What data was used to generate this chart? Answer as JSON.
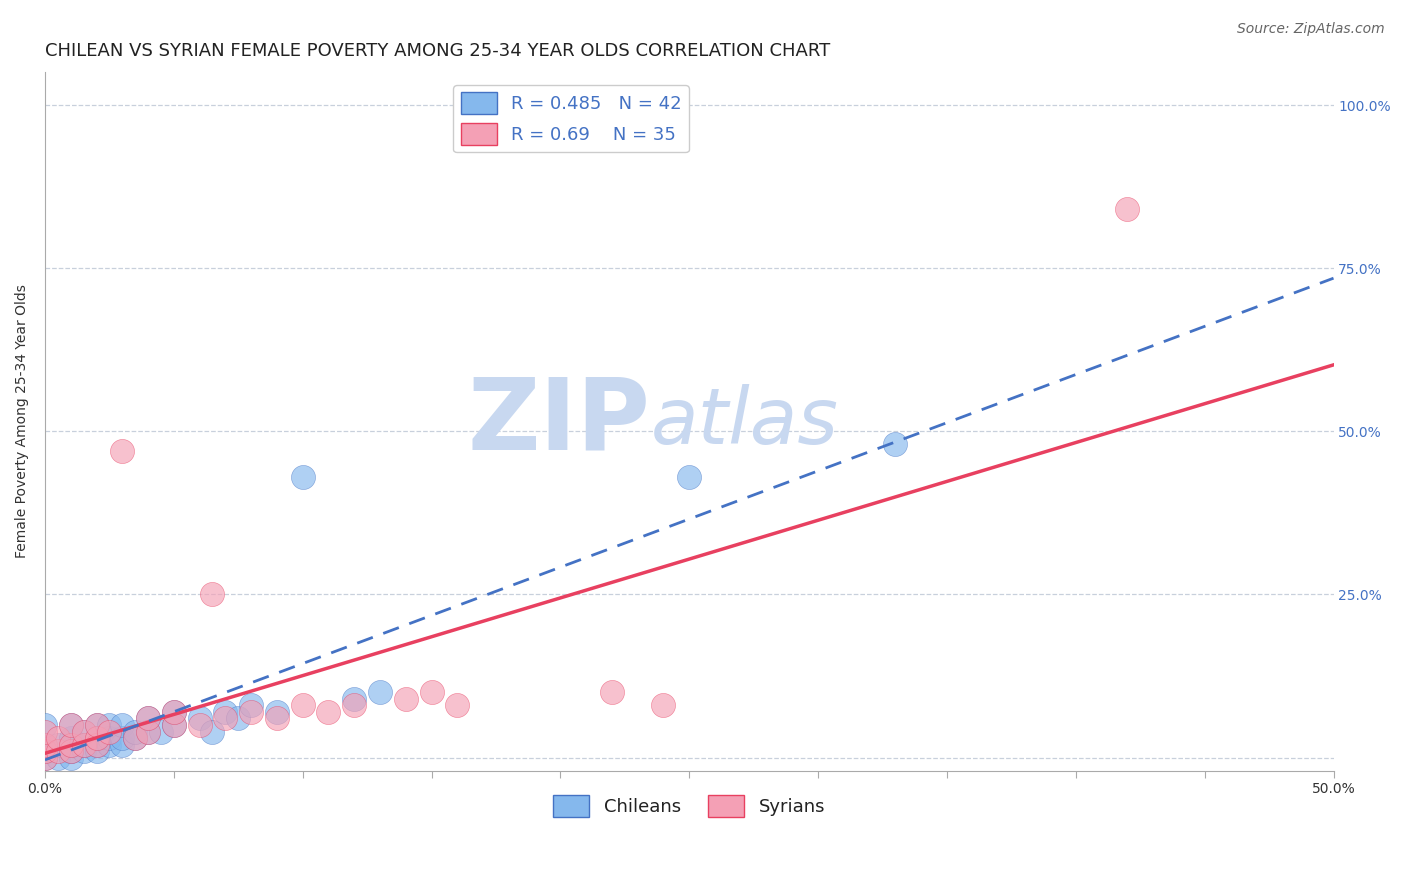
{
  "title": "CHILEAN VS SYRIAN FEMALE POVERTY AMONG 25-34 YEAR OLDS CORRELATION CHART",
  "source": "Source: ZipAtlas.com",
  "ylabel": "Female Poverty Among 25-34 Year Olds",
  "xlim": [
    0.0,
    0.5
  ],
  "ylim": [
    -0.02,
    1.05
  ],
  "chilean_color": "#85B8ED",
  "syrian_color": "#F4A0B5",
  "chilean_line_color": "#4472C4",
  "syrian_line_color": "#E84060",
  "tick_color": "#4472C4",
  "r_chilean": 0.485,
  "n_chilean": 42,
  "r_syrian": 0.69,
  "n_syrian": 35,
  "watermark_zip": "ZIP",
  "watermark_atlas": "atlas",
  "watermark_color": "#C8D8F0",
  "chilean_x": [
    0.0,
    0.0,
    0.0,
    0.0,
    0.005,
    0.005,
    0.01,
    0.01,
    0.01,
    0.01,
    0.01,
    0.015,
    0.015,
    0.015,
    0.02,
    0.02,
    0.02,
    0.02,
    0.025,
    0.025,
    0.025,
    0.03,
    0.03,
    0.03,
    0.035,
    0.035,
    0.04,
    0.04,
    0.045,
    0.05,
    0.05,
    0.06,
    0.065,
    0.07,
    0.075,
    0.08,
    0.09,
    0.1,
    0.12,
    0.13,
    0.25,
    0.33
  ],
  "chilean_y": [
    0.0,
    0.01,
    0.02,
    0.05,
    0.0,
    0.02,
    0.0,
    0.01,
    0.02,
    0.03,
    0.05,
    0.01,
    0.02,
    0.04,
    0.01,
    0.02,
    0.03,
    0.05,
    0.02,
    0.03,
    0.05,
    0.02,
    0.03,
    0.05,
    0.03,
    0.04,
    0.04,
    0.06,
    0.04,
    0.05,
    0.07,
    0.06,
    0.04,
    0.07,
    0.06,
    0.08,
    0.07,
    0.43,
    0.09,
    0.1,
    0.43,
    0.48
  ],
  "syrian_x": [
    0.0,
    0.0,
    0.0,
    0.0,
    0.005,
    0.005,
    0.01,
    0.01,
    0.01,
    0.015,
    0.015,
    0.02,
    0.02,
    0.02,
    0.025,
    0.03,
    0.035,
    0.04,
    0.04,
    0.05,
    0.05,
    0.06,
    0.065,
    0.07,
    0.08,
    0.09,
    0.1,
    0.11,
    0.12,
    0.14,
    0.15,
    0.16,
    0.22,
    0.24,
    0.42
  ],
  "syrian_y": [
    0.0,
    0.01,
    0.02,
    0.04,
    0.01,
    0.03,
    0.01,
    0.02,
    0.05,
    0.02,
    0.04,
    0.02,
    0.03,
    0.05,
    0.04,
    0.47,
    0.03,
    0.04,
    0.06,
    0.05,
    0.07,
    0.05,
    0.25,
    0.06,
    0.07,
    0.06,
    0.08,
    0.07,
    0.08,
    0.09,
    0.1,
    0.08,
    0.1,
    0.08,
    0.84
  ],
  "background_color": "#FFFFFF",
  "grid_color": "#C8D0DC",
  "title_fontsize": 13,
  "axis_label_fontsize": 10,
  "tick_fontsize": 10,
  "legend_fontsize": 13
}
